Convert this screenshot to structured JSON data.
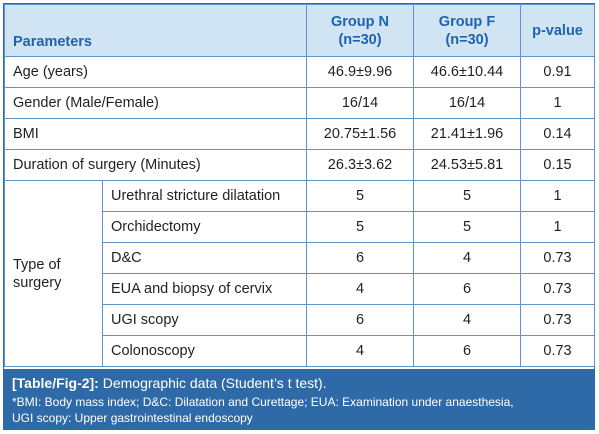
{
  "table": {
    "headers": {
      "parameters": "Parameters",
      "group_n_line1": "Group N",
      "group_n_line2": "(n=30)",
      "group_f_line1": "Group F",
      "group_f_line2": "(n=30)",
      "p_value": "p-value"
    },
    "rows": [
      {
        "label": "Age (years)",
        "group_n": "46.9±9.96",
        "group_f": "46.6±10.44",
        "p": "0.91"
      },
      {
        "label": "Gender (Male/Female)",
        "group_n": "16/14",
        "group_f": "16/14",
        "p": "1"
      },
      {
        "label": "BMI",
        "group_n": "20.75±1.56",
        "group_f": "21.41±1.96",
        "p": "0.14"
      },
      {
        "label": "Duration of surgery (Minutes)",
        "group_n": "26.3±3.62",
        "group_f": "24.53±5.81",
        "p": "0.15"
      }
    ],
    "type_of_surgery": {
      "label_line1": "Type of",
      "label_line2": "surgery",
      "rows": [
        {
          "label": "Urethral stricture dilatation",
          "group_n": "5",
          "group_f": "5",
          "p": "1"
        },
        {
          "label": "Orchidectomy",
          "group_n": "5",
          "group_f": "5",
          "p": "1"
        },
        {
          "label": "D&C",
          "group_n": "6",
          "group_f": "4",
          "p": "0.73"
        },
        {
          "label": "EUA and biopsy of cervix",
          "group_n": "4",
          "group_f": "6",
          "p": "0.73"
        },
        {
          "label": "UGI scopy",
          "group_n": "6",
          "group_f": "4",
          "p": "0.73"
        },
        {
          "label": "Colonoscopy",
          "group_n": "4",
          "group_f": "6",
          "p": "0.73"
        }
      ]
    }
  },
  "caption": {
    "tag": "[Table/Fig-2]:",
    "text": " Demographic data (Student’s t test).",
    "footnote_line1": "*BMI: Body mass index; D&C: Dilatation and Curettage; EUA: Examination under anaesthesia,",
    "footnote_line2": "UGI scopy: Upper gastrointestinal endoscopy"
  },
  "colors": {
    "header_bg": "#d1e4f4",
    "header_text": "#1f63ad",
    "border": "#5f93c9",
    "caption_bg": "#2f6aa8"
  }
}
